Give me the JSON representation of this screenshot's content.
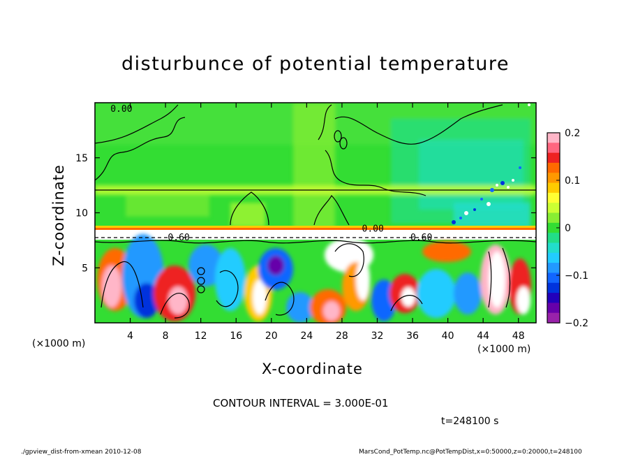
{
  "chart_data": {
    "type": "heatmap",
    "title": "disturbunce of potential temperature",
    "xlabel": "X-coordinate",
    "ylabel": "Z-coordinate",
    "x_unit_label": "(×1000 m)",
    "xlim": [
      0,
      50
    ],
    "ylim": [
      0,
      20
    ],
    "x_ticks": [
      4,
      8,
      12,
      16,
      20,
      24,
      28,
      32,
      36,
      40,
      44,
      48
    ],
    "y_ticks": [
      5,
      10,
      15
    ],
    "colorbar": {
      "range": [
        -0.2,
        0.2
      ],
      "ticks": [
        {
          "value": 0.2,
          "label": "0.2"
        },
        {
          "value": 0.1,
          "label": "0.1"
        },
        {
          "value": 0,
          "label": "0"
        },
        {
          "value": -0.1,
          "label": "−0.1"
        },
        {
          "value": -0.2,
          "label": "−0.2"
        }
      ],
      "colors": [
        "#ffb6c8",
        "#ff6680",
        "#ee2222",
        "#ff6a00",
        "#ff9900",
        "#ffcc00",
        "#ffff33",
        "#ccff33",
        "#88ee33",
        "#33dd33",
        "#22dd88",
        "#22ddcc",
        "#22ccff",
        "#2299ff",
        "#1166ff",
        "#0033dd",
        "#2200bb",
        "#6600aa",
        "#9922aa"
      ]
    },
    "contour_labels": [
      {
        "x": 3.0,
        "z": 19.5,
        "label": "0.00"
      },
      {
        "x": 9.5,
        "z": 7.8,
        "label": "0.60"
      },
      {
        "x": 31.5,
        "z": 8.6,
        "label": "0.00"
      },
      {
        "x": 37.0,
        "z": 7.8,
        "label": "0.60"
      }
    ]
  },
  "text": {
    "title": "disturbunce of potential temperature",
    "xlabel": "X-coordinate",
    "ylabel": "Z-coordinate",
    "x_unit_left": "(×1000 m)",
    "x_unit_right": "(×1000 m)",
    "contour_interval": "CONTOUR INTERVAL = 3.000E-01",
    "time": "t=248100 s",
    "footer_left": "./gpview_dist-from-xmean   2010-12-08",
    "footer_right": "MarsCond_PotTemp.nc@PotTempDist,x=0:50000,z=0:20000,t=248100"
  }
}
